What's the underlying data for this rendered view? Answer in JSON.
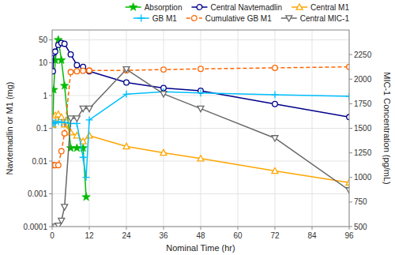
{
  "chart_data": {
    "type": "line",
    "xlabel": "Nominal Time (hr)",
    "ylabel": "Navtemadlin or M1 (mg)",
    "y2label": "MIC-1 Concentration (pg/mL)",
    "xlim": [
      0,
      96
    ],
    "xticks": [
      0,
      12,
      24,
      36,
      48,
      60,
      72,
      84,
      96
    ],
    "ylim": [
      0.0001,
      100
    ],
    "yticks": [
      0.0001,
      0.001,
      0.01,
      0.1,
      1,
      10,
      50
    ],
    "y2lim": [
      500,
      2500
    ],
    "y2ticks": [
      500,
      750,
      1000,
      1250,
      1500,
      1750,
      2000,
      2250
    ],
    "log": "y",
    "grid": true,
    "legend": "upper right",
    "series": [
      {
        "name": "Absorption",
        "color": "#00bb00",
        "marker": "star",
        "line_style": "solid",
        "x": [
          0.25,
          0.5,
          1,
          2,
          3,
          4,
          6,
          8,
          10,
          11
        ],
        "values": [
          0.13,
          1.5,
          12,
          50,
          12,
          2.0,
          0.025,
          0.025,
          0.025,
          0.0008
        ]
      },
      {
        "name": "Central Navtemadlin",
        "color": "#00008b",
        "marker": "circle",
        "line_style": "solid",
        "x": [
          0.25,
          0.5,
          1,
          2,
          3,
          4,
          6,
          8,
          10,
          12,
          24,
          36,
          48,
          72,
          96
        ],
        "values": [
          5.5,
          20,
          22,
          35,
          40,
          38,
          18,
          8.5,
          7.5,
          5.5,
          2.5,
          1.7,
          1.4,
          0.55,
          0.22
        ]
      },
      {
        "name": "Central M1",
        "color": "#ffa500",
        "marker": "triangle-up",
        "line_style": "solid",
        "x": [
          0.25,
          0.5,
          1,
          2,
          3,
          4,
          6,
          8,
          10,
          12,
          24,
          36,
          48,
          72,
          96
        ],
        "values": [
          0.13,
          0.2,
          0.25,
          0.27,
          0.22,
          0.13,
          0.075,
          0.06,
          0.04,
          0.06,
          0.028,
          0.018,
          0.012,
          0.005,
          0.0022
        ]
      },
      {
        "name": "GB M1",
        "color": "#00bfff",
        "marker": "plus",
        "line_style": "solid",
        "x": [
          0.25,
          0.5,
          1,
          2,
          3,
          4,
          6,
          8,
          10,
          11,
          12,
          24,
          36,
          48,
          72,
          96
        ],
        "values": [
          0.15,
          0.14,
          0.15,
          0.16,
          0.15,
          0.15,
          0.14,
          0.14,
          0.013,
          0.0032,
          0.18,
          1.1,
          1.3,
          1.2,
          1.05,
          0.95
        ]
      },
      {
        "name": "Cumulative GB M1",
        "color": "#ff6600",
        "marker": "circle",
        "line_style": "dashed",
        "x": [
          0.25,
          0.5,
          1,
          2,
          3,
          4,
          6,
          8,
          10,
          12,
          24,
          36,
          48,
          72,
          96
        ],
        "values": [
          0.0075,
          0.0075,
          0.0075,
          0.0075,
          0.02,
          0.07,
          5.2,
          5.5,
          5.7,
          5.8,
          5.85,
          6.2,
          6.5,
          7.0,
          7.5
        ]
      },
      {
        "name": "Central MIC-1",
        "color": "#696969",
        "marker": "triangle-down",
        "line_style": "solid",
        "axis": "y2",
        "x": [
          0.25,
          0.5,
          1,
          2,
          3,
          4,
          6,
          8,
          10,
          12,
          24,
          36,
          48,
          72,
          96
        ],
        "values": [
          500,
          500,
          500,
          510,
          560,
          700,
          1600,
          1600,
          1700,
          1700,
          2100,
          1850,
          1700,
          1400,
          870
        ]
      }
    ]
  }
}
